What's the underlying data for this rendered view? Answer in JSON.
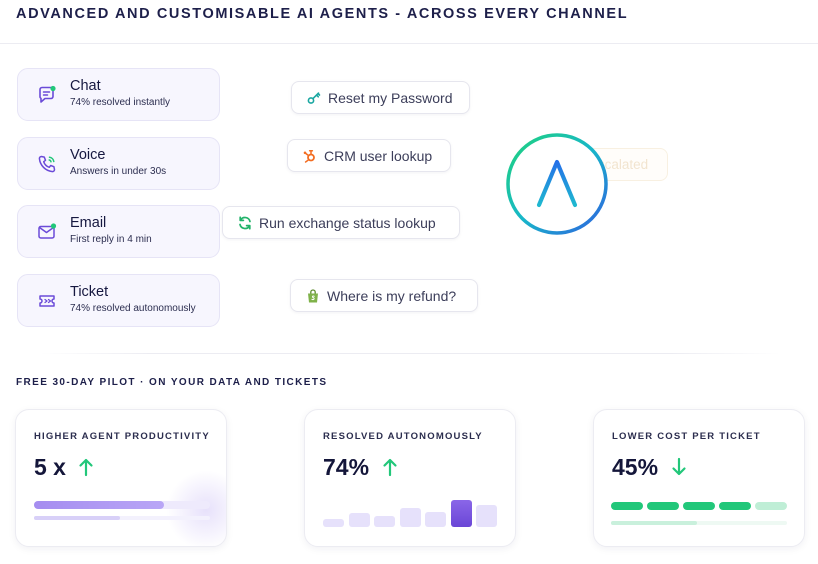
{
  "header": {
    "headline": "ADVANCED AND CUSTOMISABLE AI AGENTS - ACROSS EVERY CHANNEL"
  },
  "channels": [
    {
      "title": "Chat",
      "subtitle": "74% resolved instantly",
      "icon": "chat-icon"
    },
    {
      "title": "Voice",
      "subtitle": "Answers in under 30s",
      "icon": "phone-icon"
    },
    {
      "title": "Email",
      "subtitle": "First reply in 4 min",
      "icon": "envelope-icon"
    },
    {
      "title": "Ticket",
      "subtitle": "74% resolved autonomously",
      "icon": "ticket-icon"
    }
  ],
  "actions": [
    {
      "label": "Reset my Password",
      "icon": "key-icon",
      "color": "#1aa7a1"
    },
    {
      "label": "CRM user lookup",
      "icon": "hubspot-icon",
      "color": "#f36d21"
    },
    {
      "label": "Run exchange status lookup",
      "icon": "refresh-icon",
      "color": "#22b36a"
    },
    {
      "label": "Where is my refund?",
      "icon": "shopify-bag-icon",
      "color": "#7fb24a"
    }
  ],
  "escalated": {
    "label": "Escalated",
    "icon": "check-icon"
  },
  "pilot": {
    "label": "FREE 30-DAY PILOT · ON YOUR DATA AND TICKETS"
  },
  "stats": [
    {
      "label": "HIGHER AGENT PRODUCTIVITY",
      "value": "5 x",
      "trend": "up",
      "bar_level": 0.74,
      "sub_bar_level": 0.49
    },
    {
      "label": "RESOLVED AUTONOMOUSLY",
      "value": "74%",
      "trend": "up",
      "mini_bar_levels": [
        0.28,
        0.52,
        0.4,
        0.72,
        0.56,
        1.0,
        0.8
      ],
      "highlight_index": 5
    },
    {
      "label": "LOWER COST PER TICKET",
      "value": "45%",
      "trend": "down",
      "segments": 5,
      "faded_segments": 1,
      "sub_bar_level": 0.49
    }
  ],
  "colors": {
    "accent": "#7a57e0",
    "positive": "#22c77a",
    "text": "#14163a"
  }
}
